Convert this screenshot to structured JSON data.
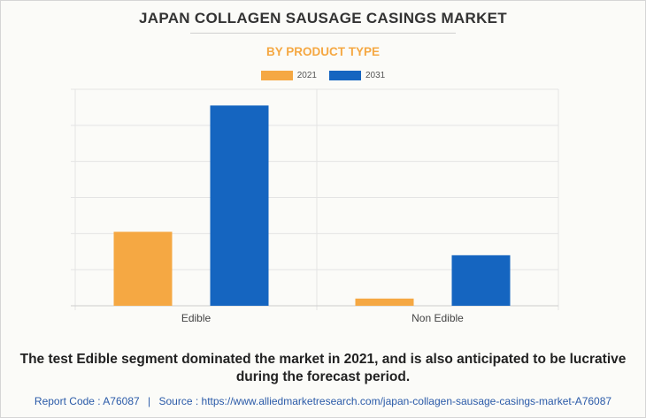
{
  "header": {
    "title": "JAPAN COLLAGEN SAUSAGE CASINGS MARKET",
    "subtitle": "BY PRODUCT TYPE"
  },
  "chart_data": {
    "type": "bar",
    "categories": [
      "Edible",
      "Non Edible"
    ],
    "series": [
      {
        "name": "2021",
        "color": "#f5a843",
        "values": [
          20.5,
          2.0
        ]
      },
      {
        "name": "2031",
        "color": "#1565c0",
        "values": [
          55.5,
          14.0
        ]
      }
    ],
    "ylim": [
      0,
      60
    ],
    "ytick_step": 10,
    "yticks_labeled": false,
    "grid": true,
    "legend_position": "top-center"
  },
  "caption": "The test Edible segment dominated the market in 2021, and is also anticipated to be lucrative during the forecast period.",
  "footer": {
    "report_code": "Report Code : A76087",
    "separator": "|",
    "source": "Source : https://www.alliedmarketresearch.com/japan-collagen-sausage-casings-market-A76087"
  }
}
